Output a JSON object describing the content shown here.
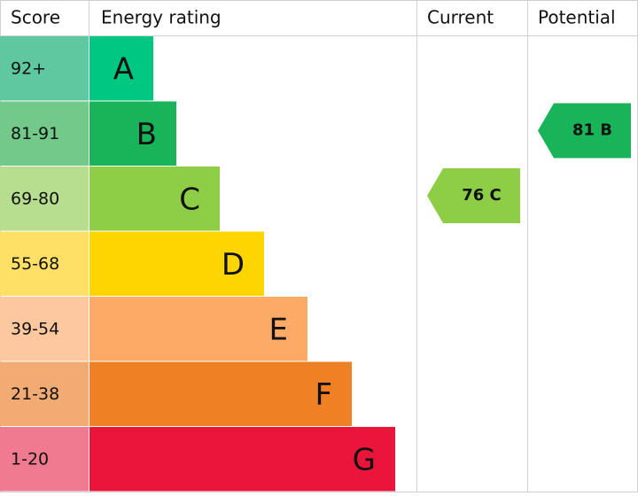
{
  "header": {
    "score": "Score",
    "rating": "Energy rating",
    "current": "Current",
    "potential": "Potential"
  },
  "bands": [
    {
      "score": "92+",
      "letter": "A",
      "color": "#00c781",
      "score_color": "#5fc8a0"
    },
    {
      "score": "81-91",
      "letter": "B",
      "color": "#19b459",
      "score_color": "#72c98a"
    },
    {
      "score": "69-80",
      "letter": "C",
      "color": "#8dce46",
      "score_color": "#b6de8e"
    },
    {
      "score": "55-68",
      "letter": "D",
      "color": "#ffd500",
      "score_color": "#ffe066"
    },
    {
      "score": "39-54",
      "letter": "E",
      "color": "#fcaa65",
      "score_color": "#fdc8a0"
    },
    {
      "score": "21-38",
      "letter": "F",
      "color": "#ef8023",
      "score_color": "#f3ab74"
    },
    {
      "score": "1-20",
      "letter": "G",
      "color": "#e9153b",
      "score_color": "#f07a90"
    }
  ],
  "current": {
    "label": "76 C",
    "color": "#8dce46"
  },
  "potential": {
    "label": "81 B",
    "color": "#19b459"
  }
}
